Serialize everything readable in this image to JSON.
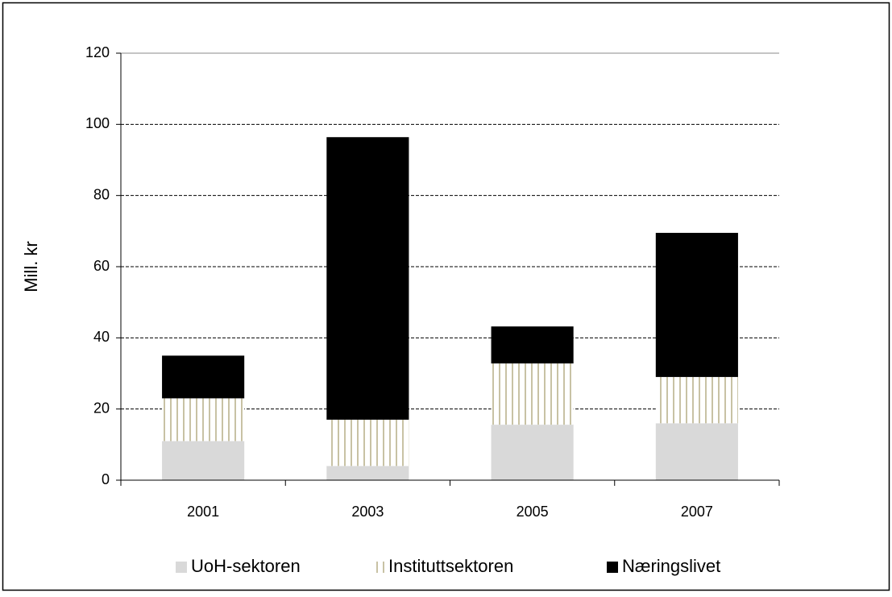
{
  "chart_data": {
    "type": "stacked-bar",
    "y_label": "Mill. kr",
    "categories": [
      "2001",
      "2003",
      "2005",
      "2007"
    ],
    "series": [
      {
        "name": "UoH-sektoren",
        "color": "#d9d9d9",
        "values": [
          11,
          4,
          15.6,
          16
        ]
      },
      {
        "name": "Instituttsektoren",
        "color": "#b5ad86",
        "hatch": "vertical",
        "values": [
          12,
          13,
          17.2,
          13
        ]
      },
      {
        "name": "Næringslivet",
        "color": "#000000",
        "values": [
          12,
          79.4,
          10.4,
          40.5
        ]
      }
    ],
    "ylim": [
      0,
      120
    ],
    "yticks": [
      0,
      20,
      40,
      60,
      80,
      100,
      120
    ],
    "grid": true,
    "legend": "bottom"
  }
}
